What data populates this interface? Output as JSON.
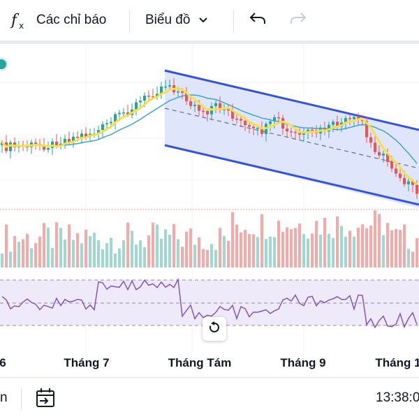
{
  "toolbar": {
    "indicators_label": "Các chỉ báo",
    "chart_type_label": "Biểu đồ",
    "indicators_icon": "fx-icon",
    "chart_type_icon": "chevron-down-icon",
    "undo_icon": "undo-icon",
    "redo_icon": "redo-icon"
  },
  "xaxis": {
    "labels": [
      "6",
      "Tháng 7",
      "Tháng Tám",
      "Tháng 9",
      "Tháng 1"
    ]
  },
  "bottom_bar": {
    "left_text": "n",
    "calendar_icon": "goto-date-icon",
    "time": "13:38:0"
  },
  "reset_icon": "reset-chart-icon",
  "colors": {
    "up": "#26a69a",
    "down": "#ef5350",
    "ma_fast": "#f5e04a",
    "ma_slow": "#3fa4c8",
    "channel": "#3452e0",
    "channel_fill": "#dfe6fb",
    "rsi_line": "#7e57c2",
    "rsi_band": "#efeafa",
    "volume_up": "#9fd8cf",
    "volume_down": "#f6a9a6"
  },
  "chart_data": {
    "type": "candlestick",
    "volume": {
      "shown": true
    },
    "rsi": {
      "shown": true,
      "band": [
        30,
        70
      ]
    },
    "grid": true
  }
}
